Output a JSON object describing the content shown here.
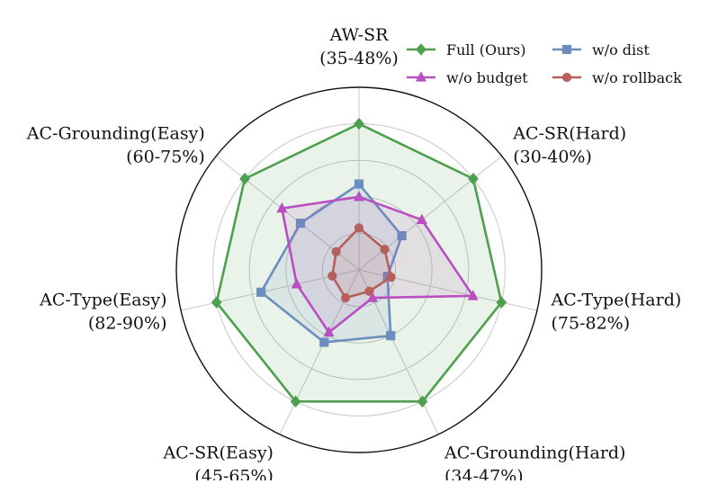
{
  "chart_data": {
    "type": "radar",
    "axes": [
      {
        "name": "AW-SR",
        "range": "(35-48%)"
      },
      {
        "name": "AC-SR(Hard)",
        "range": "(30-40%)"
      },
      {
        "name": "AC-Type(Hard)",
        "range": "(75-82%)"
      },
      {
        "name": "AC-Grounding(Hard)",
        "range": "(34-47%)"
      },
      {
        "name": "AC-SR(Easy)",
        "range": "(45-65%)"
      },
      {
        "name": "AC-Type(Easy)",
        "range": "(82-90%)"
      },
      {
        "name": "AC-Grounding(Easy)",
        "range": "(60-75%)"
      }
    ],
    "radial_scale": "normalized 0-1 within each axis range",
    "series": [
      {
        "name": "Full (Ours)",
        "color": "#4ea04e",
        "marker": "diamond",
        "values": [
          0.8,
          0.8,
          0.8,
          0.8,
          0.8,
          0.8,
          0.8
        ]
      },
      {
        "name": "w/o dist",
        "color": "#6c8ebf",
        "marker": "square",
        "values": [
          0.47,
          0.3,
          0.16,
          0.4,
          0.44,
          0.55,
          0.41
        ]
      },
      {
        "name": "w/o budget",
        "color": "#b94fc0",
        "marker": "triangle",
        "values": [
          0.4,
          0.44,
          0.64,
          0.17,
          0.38,
          0.35,
          0.54
        ]
      },
      {
        "name": "w/o rollback",
        "color": "#b5605c",
        "marker": "circle",
        "values": [
          0.23,
          0.18,
          0.18,
          0.13,
          0.17,
          0.15,
          0.16
        ]
      }
    ],
    "grid": true,
    "legend_position": "top-right"
  }
}
